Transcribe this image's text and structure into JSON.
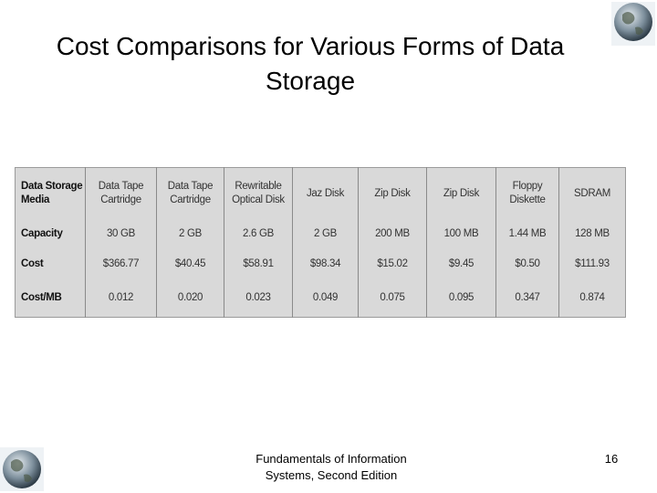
{
  "title": "Cost Comparisons for Various Forms of Data Storage",
  "table": {
    "header": [
      "Data Storage Media",
      "Data Tape Cartridge",
      "Data Tape Cartridge",
      "Rewritable Optical Disk",
      "Jaz Disk",
      "Zip Disk",
      "Zip Disk",
      "Floppy Diskette",
      "SDRAM"
    ],
    "rows": [
      [
        "Capacity",
        "30 GB",
        "2 GB",
        "2.6 GB",
        "2 GB",
        "200 MB",
        "100 MB",
        "1.44 MB",
        "128 MB"
      ],
      [
        "Cost",
        "$366.77",
        "$40.45",
        "$58.91",
        "$98.34",
        "$15.02",
        "$9.45",
        "$0.50",
        "$111.93"
      ],
      [
        "Cost/MB",
        "0.012",
        "0.020",
        "0.023",
        "0.049",
        "0.075",
        "0.095",
        "0.347",
        "0.874"
      ]
    ]
  },
  "footer": {
    "text": "Fundamentals of Information Systems, Second Edition",
    "page": "16"
  }
}
